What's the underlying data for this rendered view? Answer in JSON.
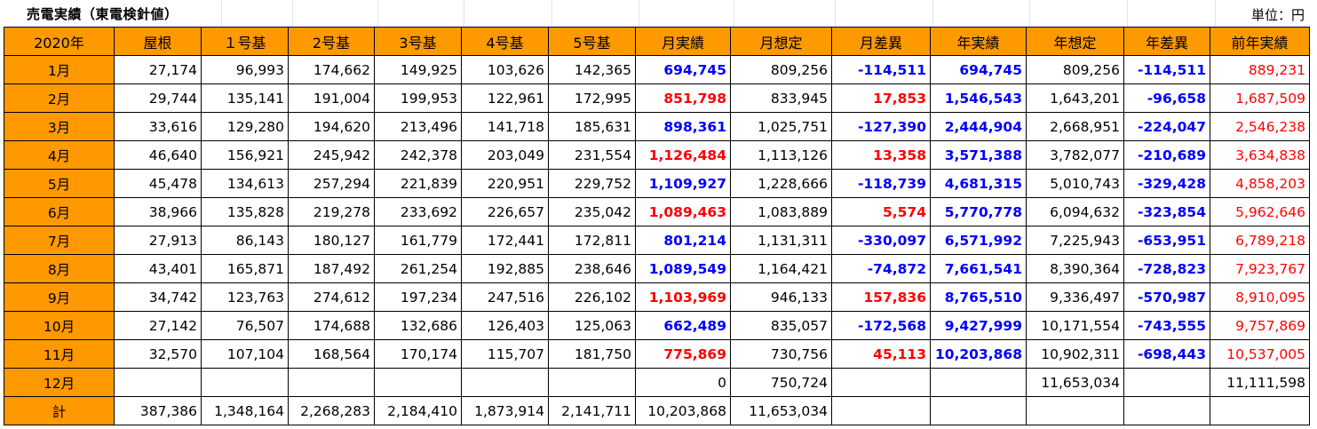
{
  "title": "売電実績（東電検針値）",
  "unit_label": "単位：円",
  "colors": {
    "header_bg": "#ff9900",
    "positive_red": "#ff0000",
    "negative_blue": "#0000ff"
  },
  "headers": [
    "2020年",
    "屋根",
    "１号基",
    "2号基",
    "3号基",
    "4号基",
    "5号基",
    "月実績",
    "月想定",
    "月差異",
    "年実績",
    "年想定",
    "年差異",
    "前年実績"
  ],
  "rows": [
    [
      "1月",
      "27,174",
      "96,993",
      "174,662",
      "149,925",
      "103,626",
      "142,365",
      "694,745",
      "809,256",
      "-114,511",
      "694,745",
      "809,256",
      "-114,511",
      "889,231"
    ],
    [
      "2月",
      "29,744",
      "135,141",
      "191,004",
      "199,953",
      "122,961",
      "172,995",
      "851,798",
      "833,945",
      "17,853",
      "1,546,543",
      "1,643,201",
      "-96,658",
      "1,687,509"
    ],
    [
      "3月",
      "33,616",
      "129,280",
      "194,620",
      "213,496",
      "141,718",
      "185,631",
      "898,361",
      "1,025,751",
      "-127,390",
      "2,444,904",
      "2,668,951",
      "-224,047",
      "2,546,238"
    ],
    [
      "4月",
      "46,640",
      "156,921",
      "245,942",
      "242,378",
      "203,049",
      "231,554",
      "1,126,484",
      "1,113,126",
      "13,358",
      "3,571,388",
      "3,782,077",
      "-210,689",
      "3,634,838"
    ],
    [
      "5月",
      "45,478",
      "134,613",
      "257,294",
      "221,839",
      "220,951",
      "229,752",
      "1,109,927",
      "1,228,666",
      "-118,739",
      "4,681,315",
      "5,010,743",
      "-329,428",
      "4,858,203"
    ],
    [
      "6月",
      "38,966",
      "135,828",
      "219,278",
      "233,692",
      "226,657",
      "235,042",
      "1,089,463",
      "1,083,889",
      "5,574",
      "5,770,778",
      "6,094,632",
      "-323,854",
      "5,962,646"
    ],
    [
      "7月",
      "27,913",
      "86,143",
      "180,127",
      "161,779",
      "172,441",
      "172,811",
      "801,214",
      "1,131,311",
      "-330,097",
      "6,571,992",
      "7,225,943",
      "-653,951",
      "6,789,218"
    ],
    [
      "8月",
      "43,401",
      "165,871",
      "187,492",
      "261,254",
      "192,885",
      "238,646",
      "1,089,549",
      "1,164,421",
      "-74,872",
      "7,661,541",
      "8,390,364",
      "-728,823",
      "7,923,767"
    ],
    [
      "9月",
      "34,742",
      "123,763",
      "274,612",
      "197,234",
      "247,516",
      "226,102",
      "1,103,969",
      "946,133",
      "157,836",
      "8,765,510",
      "9,336,497",
      "-570,987",
      "8,910,095"
    ],
    [
      "10月",
      "27,142",
      "76,507",
      "174,688",
      "132,686",
      "126,403",
      "125,063",
      "662,489",
      "835,057",
      "-172,568",
      "9,427,999",
      "10,171,554",
      "-743,555",
      "9,757,869"
    ],
    [
      "11月",
      "32,570",
      "107,104",
      "168,564",
      "170,174",
      "115,707",
      "181,750",
      "775,869",
      "730,756",
      "45,113",
      "10,203,868",
      "10,902,311",
      "-698,443",
      "10,537,005"
    ],
    [
      "12月",
      "",
      "",
      "",
      "",
      "",
      "",
      "0",
      "750,724",
      "",
      "",
      "11,653,034",
      "",
      "11,111,598"
    ],
    [
      "計",
      "387,386",
      "1,348,164",
      "2,268,283",
      "2,184,410",
      "1,873,914",
      "2,141,711",
      "10,203,868",
      "11,653,034",
      "",
      "",
      "",
      "",
      ""
    ]
  ],
  "styles": [
    [
      "",
      "",
      "",
      "",
      "",
      "",
      "",
      "blue",
      "",
      "blue",
      "blue",
      "",
      "blue",
      "redn"
    ],
    [
      "",
      "",
      "",
      "",
      "",
      "",
      "",
      "red",
      "",
      "red",
      "blue",
      "",
      "blue",
      "redn"
    ],
    [
      "",
      "",
      "",
      "",
      "",
      "",
      "",
      "blue",
      "",
      "blue",
      "blue",
      "",
      "blue",
      "redn"
    ],
    [
      "",
      "",
      "",
      "",
      "",
      "",
      "",
      "red",
      "",
      "red",
      "blue",
      "",
      "blue",
      "redn"
    ],
    [
      "",
      "",
      "",
      "",
      "",
      "",
      "",
      "blue",
      "",
      "blue",
      "blue",
      "",
      "blue",
      "redn"
    ],
    [
      "",
      "",
      "",
      "",
      "",
      "",
      "",
      "red",
      "",
      "red",
      "blue",
      "",
      "blue",
      "redn"
    ],
    [
      "",
      "",
      "",
      "",
      "",
      "",
      "",
      "blue",
      "",
      "blue",
      "blue",
      "",
      "blue",
      "redn"
    ],
    [
      "",
      "",
      "",
      "",
      "",
      "",
      "",
      "blue",
      "",
      "blue",
      "blue",
      "",
      "blue",
      "redn"
    ],
    [
      "",
      "",
      "",
      "",
      "",
      "",
      "",
      "red",
      "",
      "red",
      "blue",
      "",
      "blue",
      "redn"
    ],
    [
      "",
      "",
      "",
      "",
      "",
      "",
      "",
      "blue",
      "",
      "blue",
      "blue",
      "",
      "blue",
      "redn"
    ],
    [
      "",
      "",
      "",
      "",
      "",
      "",
      "",
      "red",
      "",
      "red",
      "blue",
      "",
      "blue",
      "redn"
    ],
    [
      "",
      "",
      "",
      "",
      "",
      "",
      "",
      "",
      "",
      "",
      "",
      "",
      "",
      ""
    ],
    [
      "",
      "",
      "",
      "",
      "",
      "",
      "",
      "",
      "",
      "",
      "",
      "",
      "",
      ""
    ]
  ]
}
